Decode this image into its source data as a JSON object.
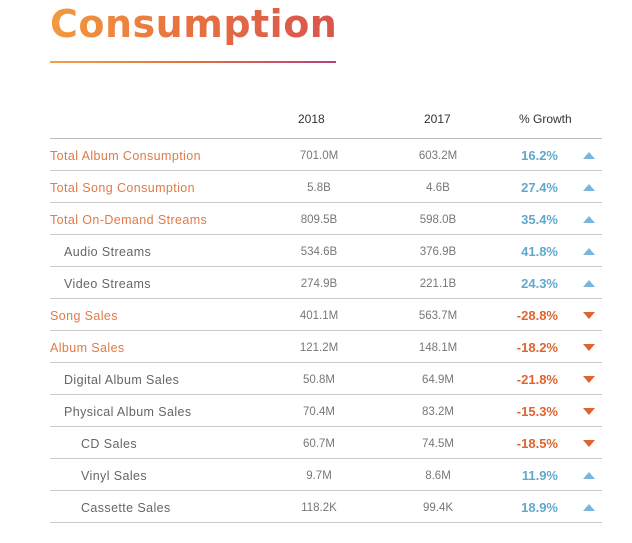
{
  "title": "Consumption",
  "columns": {
    "year1": "2018",
    "year2": "2017",
    "growth": "% Growth"
  },
  "colors": {
    "accent": "#e07a46",
    "up": "#5fa9cf",
    "down": "#e0642e"
  },
  "rows": [
    {
      "label": "Total Album Consumption",
      "v2018": "701.0M",
      "v2017": "603.2M",
      "growth": "16.2%",
      "direction": "up",
      "indent": 0,
      "style": "accent"
    },
    {
      "label": "Total Song Consumption",
      "v2018": "5.8B",
      "v2017": "4.6B",
      "growth": "27.4%",
      "direction": "up",
      "indent": 0,
      "style": "accent"
    },
    {
      "label": "Total On-Demand Streams",
      "v2018": "809.5B",
      "v2017": "598.0B",
      "growth": "35.4%",
      "direction": "up",
      "indent": 0,
      "style": "accent"
    },
    {
      "label": "Audio Streams",
      "v2018": "534.6B",
      "v2017": "376.9B",
      "growth": "41.8%",
      "direction": "up",
      "indent": 1,
      "style": "plain"
    },
    {
      "label": "Video Streams",
      "v2018": "274.9B",
      "v2017": "221.1B",
      "growth": "24.3%",
      "direction": "up",
      "indent": 1,
      "style": "plain"
    },
    {
      "label": "Song Sales",
      "v2018": "401.1M",
      "v2017": "563.7M",
      "growth": "-28.8%",
      "direction": "down",
      "indent": 0,
      "style": "accent"
    },
    {
      "label": "Album Sales",
      "v2018": "121.2M",
      "v2017": "148.1M",
      "growth": "-18.2%",
      "direction": "down",
      "indent": 0,
      "style": "accent"
    },
    {
      "label": "Digital Album Sales",
      "v2018": "50.8M",
      "v2017": "64.9M",
      "growth": "-21.8%",
      "direction": "down",
      "indent": 1,
      "style": "plain"
    },
    {
      "label": "Physical Album Sales",
      "v2018": "70.4M",
      "v2017": "83.2M",
      "growth": "-15.3%",
      "direction": "down",
      "indent": 1,
      "style": "plain"
    },
    {
      "label": "CD Sales",
      "v2018": "60.7M",
      "v2017": "74.5M",
      "growth": "-18.5%",
      "direction": "down",
      "indent": 2,
      "style": "plain"
    },
    {
      "label": "Vinyl Sales",
      "v2018": "9.7M",
      "v2017": "8.6M",
      "growth": "11.9%",
      "direction": "up",
      "indent": 2,
      "style": "plain"
    },
    {
      "label": "Cassette Sales",
      "v2018": "118.2K",
      "v2017": "99.4K",
      "growth": "18.9%",
      "direction": "up",
      "indent": 2,
      "style": "plain"
    }
  ]
}
